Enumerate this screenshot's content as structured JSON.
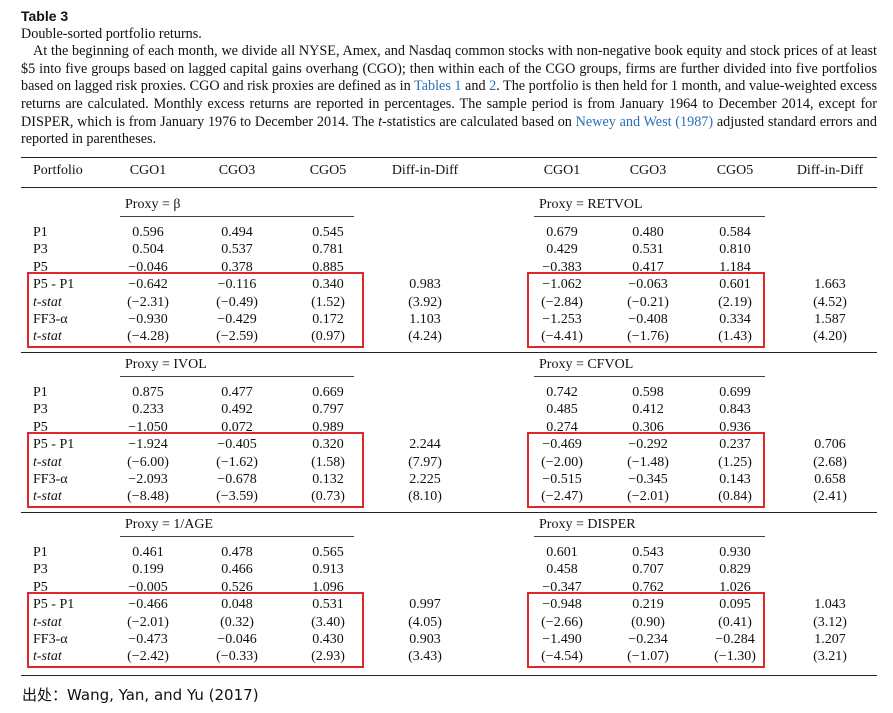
{
  "table": {
    "label": "Table 3",
    "caption": "Double-sorted portfolio returns.",
    "desc_a": "At the beginning of each month, we divide all NYSE, Amex, and Nasdaq common stocks with non-negative book equity and stock prices of at least $5 into five groups based on lagged capital gains overhang (CGO); then within each of the CGO groups, firms are further divided into five portfolios based on lagged risk proxies. CGO and risk proxies are defined as in ",
    "ref_t1": "Tables 1",
    "desc_and": " and ",
    "ref_t2": "2",
    "desc_b": ". The portfolio is then held for 1 month, and value-weighted excess returns are calculated. Monthly excess returns are reported in percentages. The sample period is from January 1964 to December 2014, except for DISPER, which is from January 1976 to December 2014. The ",
    "desc_t": "t",
    "desc_c": "-statistics are calculated based on ",
    "ref_nw": "Newey and West (1987)",
    "desc_d": " adjusted standard errors and reported in parentheses.",
    "headers": [
      "Portfolio",
      "CGO1",
      "CGO3",
      "CGO5",
      "Diff-in-Diff",
      "CGO1",
      "CGO3",
      "CGO5",
      "Diff-in-Diff"
    ],
    "row_labels": [
      "P1",
      "P3",
      "P5",
      "P5 - P1",
      "t-stat",
      "FF3-α",
      "t-stat"
    ],
    "panels": [
      {
        "left": {
          "proxy": "Proxy = β",
          "rows": [
            [
              "0.596",
              "0.494",
              "0.545",
              ""
            ],
            [
              "0.504",
              "0.537",
              "0.781",
              ""
            ],
            [
              "−0.046",
              "0.378",
              "0.885",
              ""
            ],
            [
              "−0.642",
              "−0.116",
              "0.340",
              "0.983"
            ],
            [
              "(−2.31)",
              "(−0.49)",
              "(1.52)",
              "(3.92)"
            ],
            [
              "−0.930",
              "−0.429",
              "0.172",
              "1.103"
            ],
            [
              "(−4.28)",
              "(−2.59)",
              "(0.97)",
              "(4.24)"
            ]
          ]
        },
        "right": {
          "proxy": "Proxy = RETVOL",
          "rows": [
            [
              "0.679",
              "0.480",
              "0.584",
              ""
            ],
            [
              "0.429",
              "0.531",
              "0.810",
              ""
            ],
            [
              "−0.383",
              "0.417",
              "1.184",
              ""
            ],
            [
              "−1.062",
              "−0.063",
              "0.601",
              "1.663"
            ],
            [
              "(−2.84)",
              "(−0.21)",
              "(2.19)",
              "(4.52)"
            ],
            [
              "−1.253",
              "−0.408",
              "0.334",
              "1.587"
            ],
            [
              "(−4.41)",
              "(−1.76)",
              "(1.43)",
              "(4.20)"
            ]
          ]
        }
      },
      {
        "left": {
          "proxy": "Proxy = IVOL",
          "rows": [
            [
              "0.875",
              "0.477",
              "0.669",
              ""
            ],
            [
              "0.233",
              "0.492",
              "0.797",
              ""
            ],
            [
              "−1.050",
              "0.072",
              "0.989",
              ""
            ],
            [
              "−1.924",
              "−0.405",
              "0.320",
              "2.244"
            ],
            [
              "(−6.00)",
              "(−1.62)",
              "(1.58)",
              "(7.97)"
            ],
            [
              "−2.093",
              "−0.678",
              "0.132",
              "2.225"
            ],
            [
              "(−8.48)",
              "(−3.59)",
              "(0.73)",
              "(8.10)"
            ]
          ]
        },
        "right": {
          "proxy": "Proxy = CFVOL",
          "rows": [
            [
              "0.742",
              "0.598",
              "0.699",
              ""
            ],
            [
              "0.485",
              "0.412",
              "0.843",
              ""
            ],
            [
              "0.274",
              "0.306",
              "0.936",
              ""
            ],
            [
              "−0.469",
              "−0.292",
              "0.237",
              "0.706"
            ],
            [
              "(−2.00)",
              "(−1.48)",
              "(1.25)",
              "(2.68)"
            ],
            [
              "−0.515",
              "−0.345",
              "0.143",
              "0.658"
            ],
            [
              "(−2.47)",
              "(−2.01)",
              "(0.84)",
              "(2.41)"
            ]
          ]
        }
      },
      {
        "left": {
          "proxy": "Proxy = 1/AGE",
          "rows": [
            [
              "0.461",
              "0.478",
              "0.565",
              ""
            ],
            [
              "0.199",
              "0.466",
              "0.913",
              ""
            ],
            [
              "−0.005",
              "0.526",
              "1.096",
              ""
            ],
            [
              "−0.466",
              "0.048",
              "0.531",
              "0.997"
            ],
            [
              "(−2.01)",
              "(0.32)",
              "(3.40)",
              "(4.05)"
            ],
            [
              "−0.473",
              "−0.046",
              "0.430",
              "0.903"
            ],
            [
              "(−2.42)",
              "(−0.33)",
              "(2.93)",
              "(3.43)"
            ]
          ]
        },
        "right": {
          "proxy": "Proxy = DISPER",
          "rows": [
            [
              "0.601",
              "0.543",
              "0.930",
              ""
            ],
            [
              "0.458",
              "0.707",
              "0.829",
              ""
            ],
            [
              "−0.347",
              "0.762",
              "1.026",
              ""
            ],
            [
              "−0.948",
              "0.219",
              "0.095",
              "1.043"
            ],
            [
              "(−2.66)",
              "(0.90)",
              "(0.41)",
              "(3.12)"
            ],
            [
              "−1.490",
              "−0.234",
              "−0.284",
              "1.207"
            ],
            [
              "(−4.54)",
              "(−1.07)",
              "(−1.30)",
              "(3.21)"
            ]
          ]
        }
      }
    ]
  },
  "source": "出处：Wang, Yan, and Yu (2017)",
  "highlight_color": "#e0282c"
}
